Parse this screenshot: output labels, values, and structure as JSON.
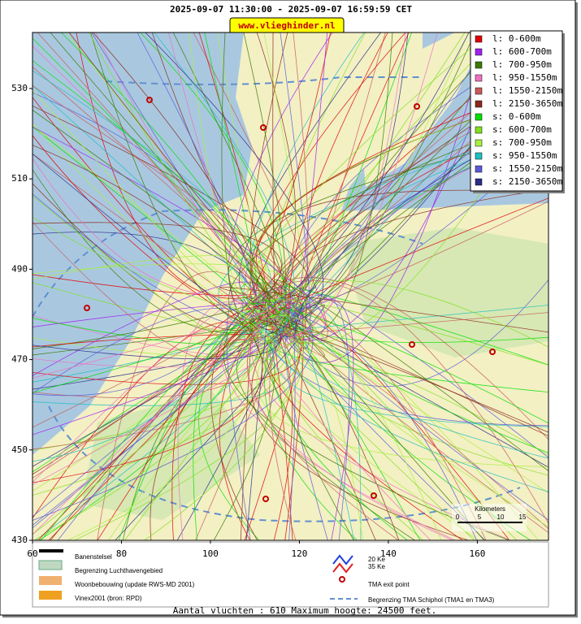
{
  "header": {
    "title": "2025-09-07 11:30:00 - 2025-09-07 16:59:59 CET",
    "site": "www.vlieghinder.nl"
  },
  "map": {
    "xlim": [
      60,
      176
    ],
    "ylim": [
      430,
      542.4
    ],
    "xticks": [
      60,
      80,
      100,
      120,
      140,
      160
    ],
    "yticks": [
      430,
      450,
      470,
      490,
      510,
      530
    ]
  },
  "legend": [
    {
      "label": "l: 0-600m",
      "color": "#e00000"
    },
    {
      "label": "l: 600-700m",
      "color": "#a020f0"
    },
    {
      "label": "l: 700-950m",
      "color": "#3c7a00"
    },
    {
      "label": "l: 950-1550m",
      "color": "#f070c0"
    },
    {
      "label": "l: 1550-2150m",
      "color": "#c85a5a"
    },
    {
      "label": "l: 2150-3650m",
      "color": "#8b2a1a"
    },
    {
      "label": "s: 0-600m",
      "color": "#00e000"
    },
    {
      "label": "s: 600-700m",
      "color": "#80e020"
    },
    {
      "label": "s: 700-950m",
      "color": "#a8f040"
    },
    {
      "label": "s: 950-1550m",
      "color": "#20c0c0"
    },
    {
      "label": "s: 1550-2150m",
      "color": "#5a5ad8"
    },
    {
      "label": "s: 2150-3650m",
      "color": "#2c2c88"
    }
  ],
  "scale_bar": {
    "title": "Kilometers",
    "labels": [
      0,
      5,
      10,
      15
    ]
  },
  "map_legend": {
    "runways": "Banenstelsel",
    "airport_boundary": "Begrenzing Luchthavengebied",
    "housing": "Woonbebouwing (update RWS-MD 2001)",
    "vinex": "Vinex2001 (bron: RPD)",
    "ke20": "20 Ke",
    "ke35": "35 Ke",
    "exit_point": "TMA exit point",
    "tma_boundary": "Begrenzing TMA Schiphol  (TMA1 en TMA3)"
  },
  "footer": "Aantal vluchten : 610 Maximum hoogte: 24500 feet."
}
